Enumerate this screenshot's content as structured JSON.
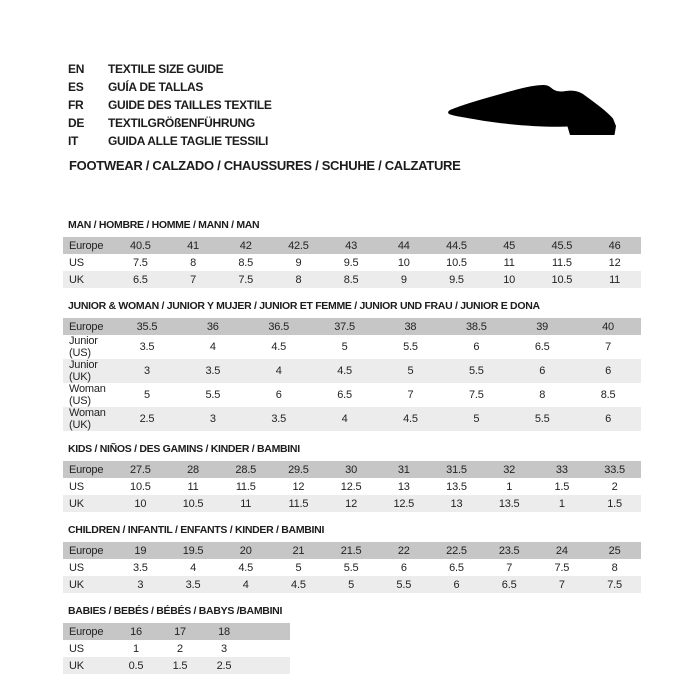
{
  "header": {
    "languages": [
      {
        "code": "EN",
        "text": "TEXTILE SIZE GUIDE"
      },
      {
        "code": "ES",
        "text": "GUÍA DE TALLAS"
      },
      {
        "code": "FR",
        "text": "GUIDE DES TAILLES TEXTILE"
      },
      {
        "code": "DE",
        "text": "TEXTILGRÖßENFÜHRUNG"
      },
      {
        "code": "IT",
        "text": "GUIDA ALLE TAGLIE TESSILI"
      }
    ],
    "category_line": "FOOTWEAR / CALZADO / CHAUSSURES / SCHUHE / CALZATURE",
    "shoe_icon": "dress-shoe-silhouette"
  },
  "colors": {
    "background": "#ffffff",
    "header_row": "#c6c6c6",
    "alt_row": "#ececec",
    "text": "#1c1c1c",
    "shoe": "#000000"
  },
  "sections": [
    {
      "id": "man",
      "title": "MAN / HOMBRE / HOMME / MANN / MAN",
      "trailing_empty_columns": 0,
      "rows": [
        {
          "label": "Europe",
          "values": [
            "40.5",
            "41",
            "42",
            "42.5",
            "43",
            "44",
            "44.5",
            "45",
            "45.5",
            "46"
          ]
        },
        {
          "label": "US",
          "values": [
            "7.5",
            "8",
            "8.5",
            "9",
            "9.5",
            "10",
            "10.5",
            "11",
            "11.5",
            "12"
          ]
        },
        {
          "label": "UK",
          "values": [
            "6.5",
            "7",
            "7.5",
            "8",
            "8.5",
            "9",
            "9.5",
            "10",
            "10.5",
            "11"
          ]
        }
      ]
    },
    {
      "id": "junior-woman",
      "title": "JUNIOR & WOMAN / JUNIOR Y MUJER / JUNIOR ET FEMME / JUNIOR UND FRAU / JUNIOR E DONA",
      "trailing_empty_columns": 0,
      "rows": [
        {
          "label": "Europe",
          "values": [
            "35.5",
            "36",
            "36.5",
            "37.5",
            "38",
            "38.5",
            "39",
            "40"
          ]
        },
        {
          "label": "Junior (US)",
          "values": [
            "3.5",
            "4",
            "4.5",
            "5",
            "5.5",
            "6",
            "6.5",
            "7"
          ]
        },
        {
          "label": "Junior (UK)",
          "values": [
            "3",
            "3.5",
            "4",
            "4.5",
            "5",
            "5.5",
            "6",
            "6"
          ]
        },
        {
          "label": "Woman (US)",
          "values": [
            "5",
            "5.5",
            "6",
            "6.5",
            "7",
            "7.5",
            "8",
            "8.5"
          ]
        },
        {
          "label": "Woman (UK)",
          "values": [
            "2.5",
            "3",
            "3.5",
            "4",
            "4.5",
            "5",
            "5.5",
            "6"
          ]
        }
      ]
    },
    {
      "id": "kids",
      "title": "KIDS / NIÑOS / DES GAMINS / KINDER / BAMBINI",
      "trailing_empty_columns": 0,
      "rows": [
        {
          "label": "Europe",
          "values": [
            "27.5",
            "28",
            "28.5",
            "29.5",
            "30",
            "31",
            "31.5",
            "32",
            "33",
            "33.5"
          ]
        },
        {
          "label": "US",
          "values": [
            "10.5",
            "11",
            "11.5",
            "12",
            "12.5",
            "13",
            "13.5",
            "1",
            "1.5",
            "2"
          ]
        },
        {
          "label": "UK",
          "values": [
            "10",
            "10.5",
            "11",
            "11.5",
            "12",
            "12.5",
            "13",
            "13.5",
            "1",
            "1.5"
          ]
        }
      ]
    },
    {
      "id": "children",
      "title": "CHILDREN / INFANTIL / ENFANTS / KINDER / BAMBINI",
      "trailing_empty_columns": 0,
      "rows": [
        {
          "label": "Europe",
          "values": [
            "19",
            "19.5",
            "20",
            "21",
            "21.5",
            "22",
            "22.5",
            "23.5",
            "24",
            "25"
          ]
        },
        {
          "label": "US",
          "values": [
            "3.5",
            "4",
            "4.5",
            "5",
            "5.5",
            "6",
            "6.5",
            "7",
            "7.5",
            "8"
          ]
        },
        {
          "label": "UK",
          "values": [
            "3",
            "3.5",
            "4",
            "4.5",
            "5",
            "5.5",
            "6",
            "6.5",
            "7",
            "7.5"
          ]
        }
      ]
    },
    {
      "id": "babies",
      "title": "BABIES / BEBÉS / BÉBÉS / BABYS /BAMBINI",
      "trailing_empty_columns": 1,
      "rows": [
        {
          "label": "Europe",
          "values": [
            "16",
            "17",
            "18"
          ]
        },
        {
          "label": "US",
          "values": [
            "1",
            "2",
            "3"
          ]
        },
        {
          "label": "UK",
          "values": [
            "0.5",
            "1.5",
            "2.5"
          ]
        }
      ]
    }
  ]
}
